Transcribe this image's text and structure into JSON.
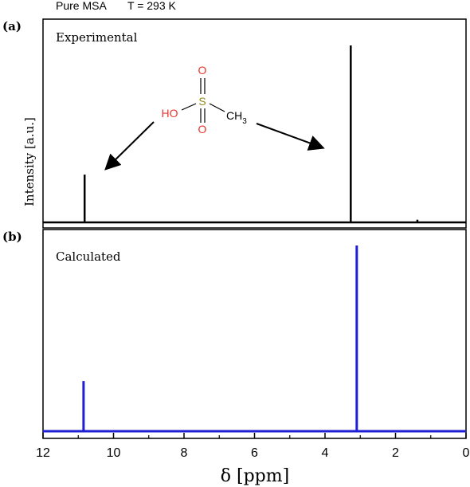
{
  "header": {
    "sample": "Pure MSA",
    "temperature": "T = 293 K"
  },
  "molecule": {
    "o_top": "O",
    "s": "S",
    "o_bottom": "O",
    "ho": "HO",
    "ch": "CH",
    "sub": "3",
    "color_o": "#e8352e",
    "color_s": "#8f8a17"
  },
  "chart_data": [
    {
      "type": "line",
      "panel_label": "(a)",
      "annotation": "Experimental",
      "ylabel": "Intensity [a.u.]",
      "xlim": [
        12,
        0
      ],
      "ylim": [
        0,
        1
      ],
      "x_reversed": true,
      "color": "#000000",
      "series": [
        {
          "values": [
            {
              "x": 10.82,
              "y": 0.27
            },
            {
              "x": 3.27,
              "y": 1.0
            },
            {
              "x": 1.38,
              "y": 0.015
            },
            {
              "x": 7.05,
              "y": 0.004
            }
          ]
        }
      ]
    },
    {
      "type": "line",
      "panel_label": "(b)",
      "annotation": "Calculated",
      "xlim": [
        12,
        0
      ],
      "ylim": [
        0,
        1
      ],
      "x_reversed": true,
      "color": "#1f1fd6",
      "series": [
        {
          "values": [
            {
              "x": 10.85,
              "y": 0.27
            },
            {
              "x": 3.1,
              "y": 1.0
            }
          ]
        }
      ],
      "xlabel": "δ [ppm]",
      "xticks": [
        12,
        10,
        8,
        6,
        4,
        2,
        0
      ]
    }
  ]
}
